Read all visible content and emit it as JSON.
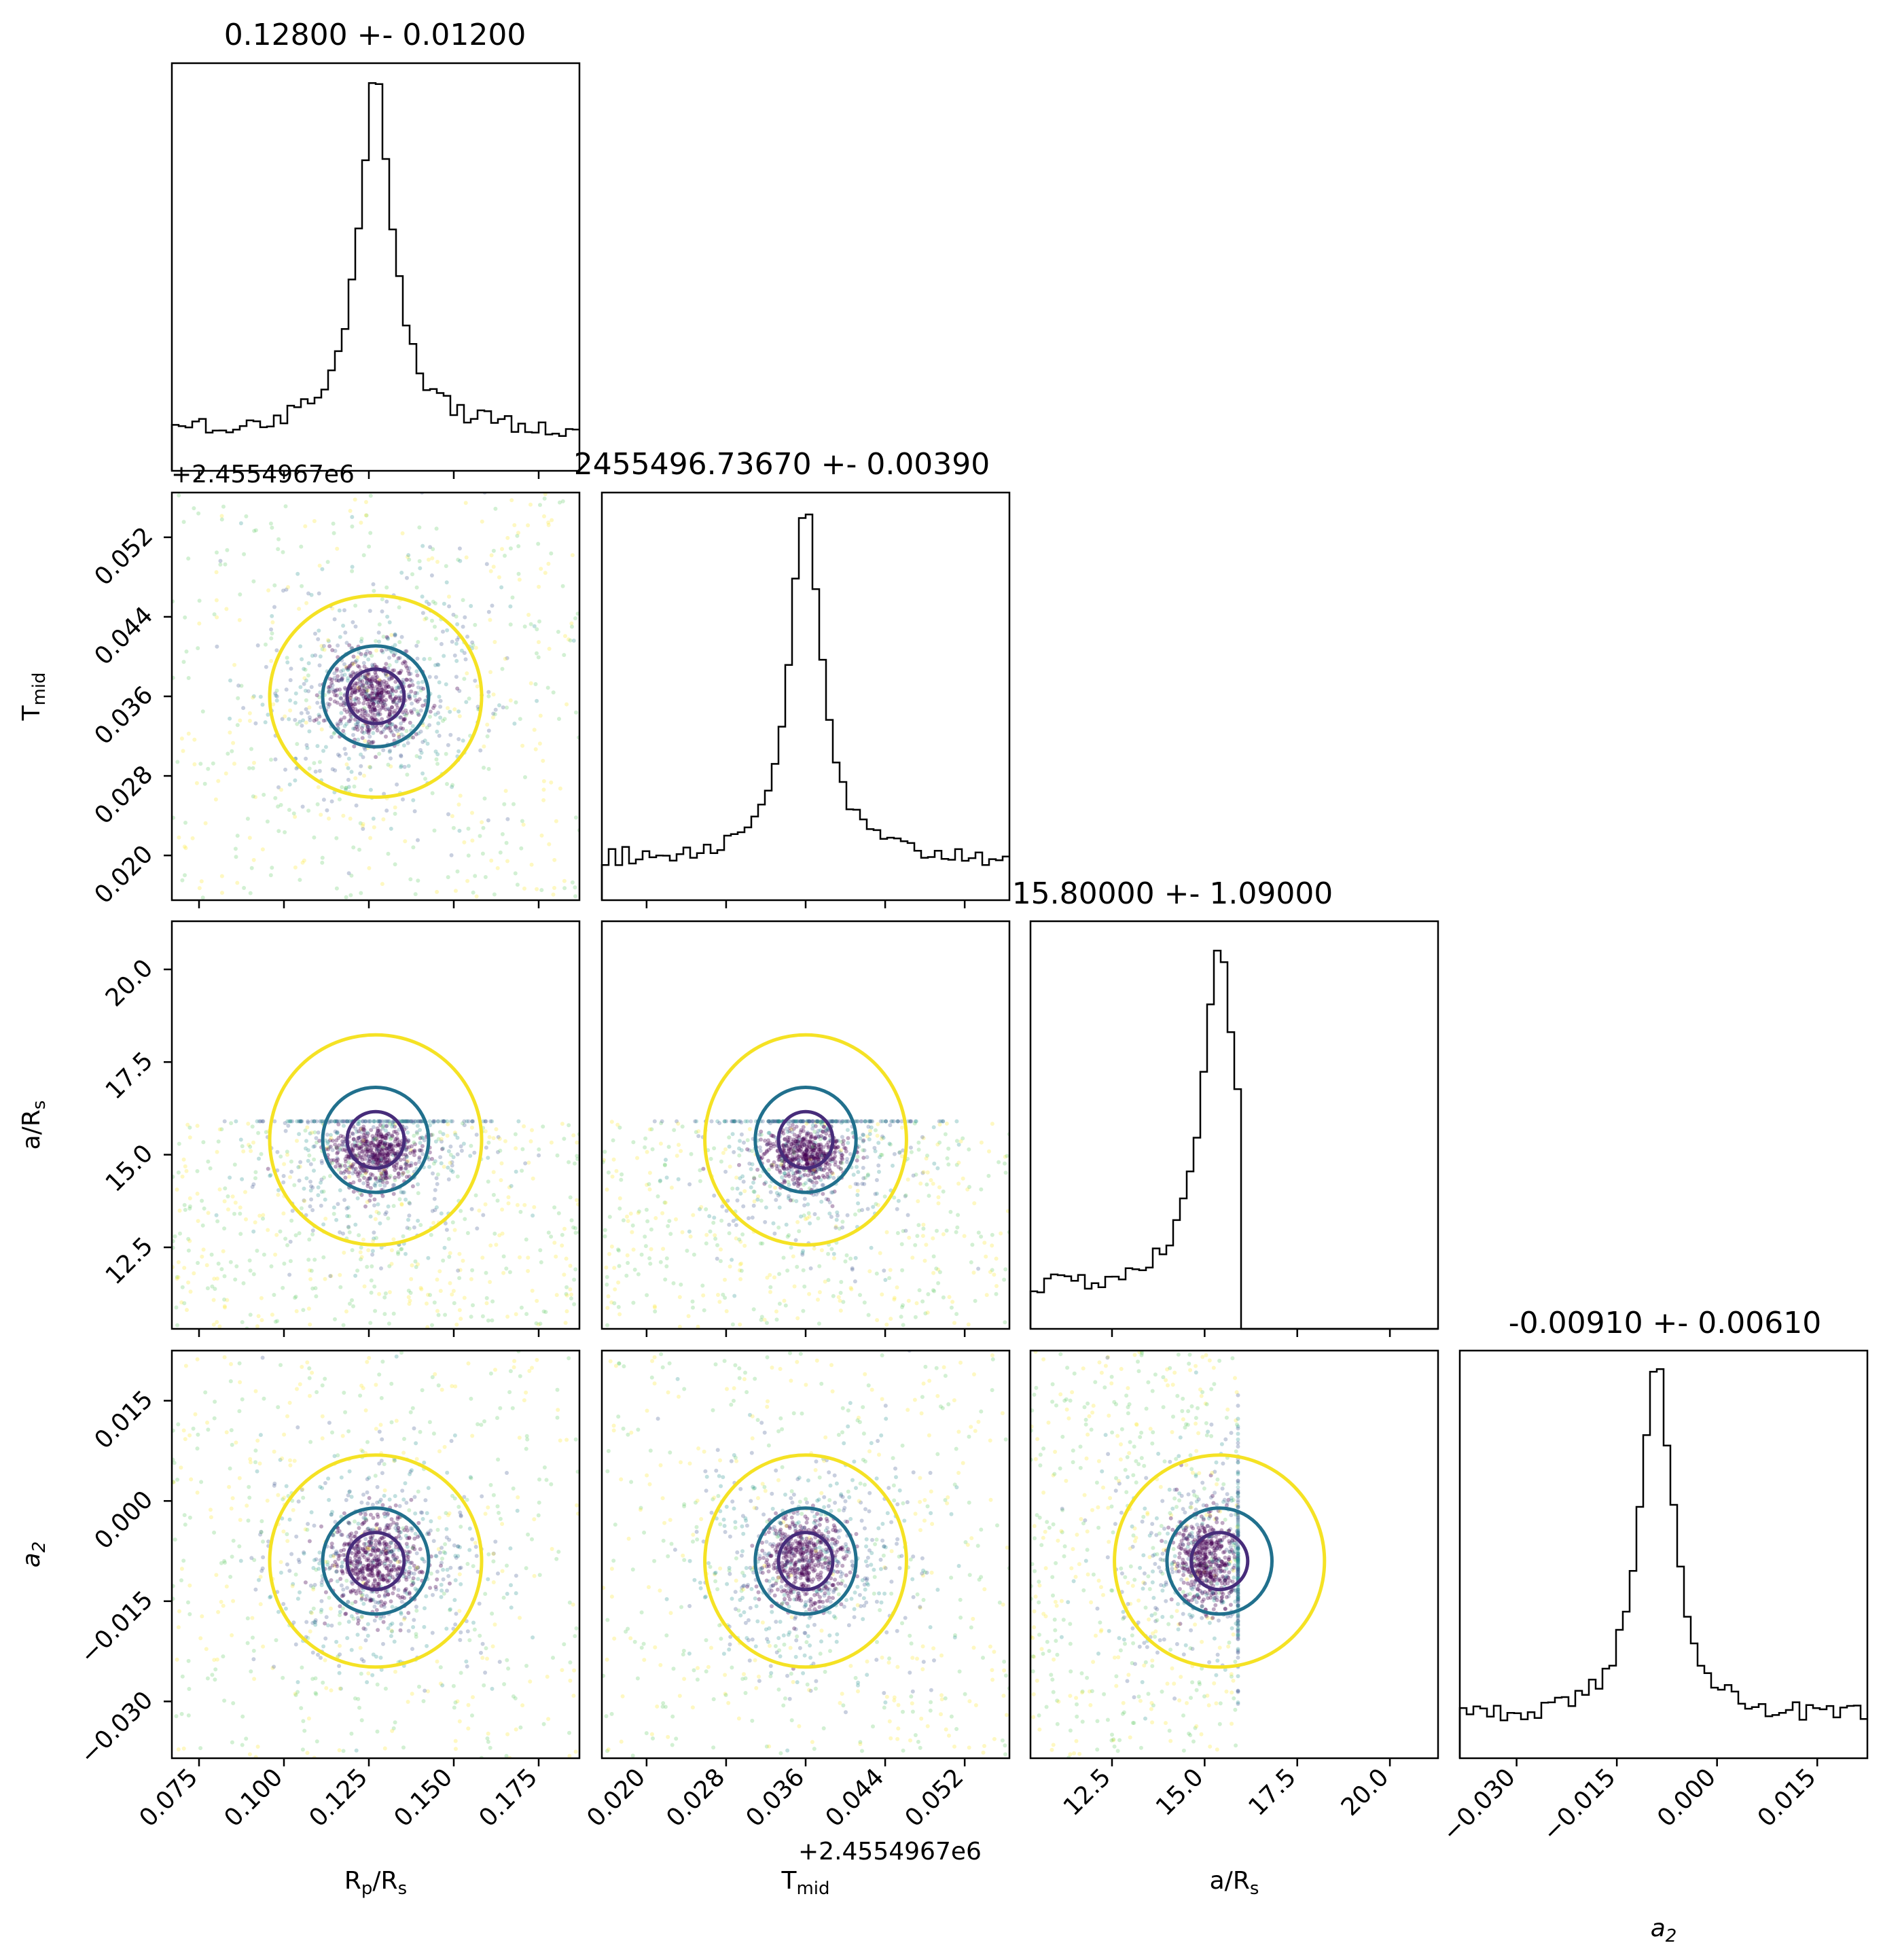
{
  "chart_data": {
    "type": "corner",
    "parameters": [
      {
        "key": "rprs",
        "label": "R",
        "sub": "p",
        "label2": "/R",
        "sub2": "s",
        "range": [
          0.067,
          0.187
        ],
        "ticks": [
          0.075,
          0.1,
          0.125,
          0.15,
          0.175
        ],
        "tick_labels": [
          "0.075",
          "0.100",
          "0.125",
          "0.150",
          "0.175"
        ],
        "mean": 0.128,
        "sigma": 0.012
      },
      {
        "key": "tmid",
        "label": "T",
        "sub": "mid",
        "label2": "",
        "sub2": "",
        "range": [
          0.0155,
          0.0565
        ],
        "ticks": [
          0.02,
          0.028,
          0.036,
          0.044,
          0.052
        ],
        "tick_labels": [
          "0.020",
          "0.028",
          "0.036",
          "0.044",
          "0.052"
        ],
        "offset_label": "+2.4554967e6",
        "mean": 0.0367,
        "sigma": 0.0039
      },
      {
        "key": "ars",
        "label": "a/R",
        "sub": "s",
        "label2": "",
        "sub2": "",
        "range": [
          10.3,
          21.3
        ],
        "ticks": [
          12.5,
          15.0,
          17.5,
          20.0
        ],
        "tick_labels": [
          "12.5",
          "15.0",
          "17.5",
          "20.0"
        ],
        "mean": 15.8,
        "sigma": 1.09
      },
      {
        "key": "a2",
        "label": "a",
        "sub": "2",
        "label2": "",
        "sub2": "",
        "italic": true,
        "range": [
          -0.0385,
          0.0225
        ],
        "ticks": [
          -0.03,
          -0.015,
          0.0,
          0.015
        ],
        "tick_labels": [
          "−0.030",
          "−0.015",
          "0.000",
          "0.015"
        ],
        "mean": -0.0091,
        "sigma": 0.0061
      }
    ],
    "titles": [
      "0.12800 +- 0.01200",
      "2455496.73670 +- 0.00390",
      "15.80000 +- 1.09000",
      "-0.00910 +- 0.00610"
    ],
    "histograms": [
      {
        "param": "rprs",
        "peak": 0.127,
        "bins": 60
      },
      {
        "param": "tmid",
        "peak": 0.036,
        "bins": 60
      },
      {
        "param": "ars",
        "peak": 15.4,
        "cutoff": 15.9,
        "bins": 60
      },
      {
        "param": "a2",
        "peak": -0.009,
        "bins": 60
      }
    ],
    "scatter_colormap": "viridis",
    "contour_levels": [
      "inner",
      "middle",
      "outer"
    ],
    "contour_colors": [
      "#472c7a",
      "#21708d",
      "#f5e224"
    ],
    "grid": false
  }
}
